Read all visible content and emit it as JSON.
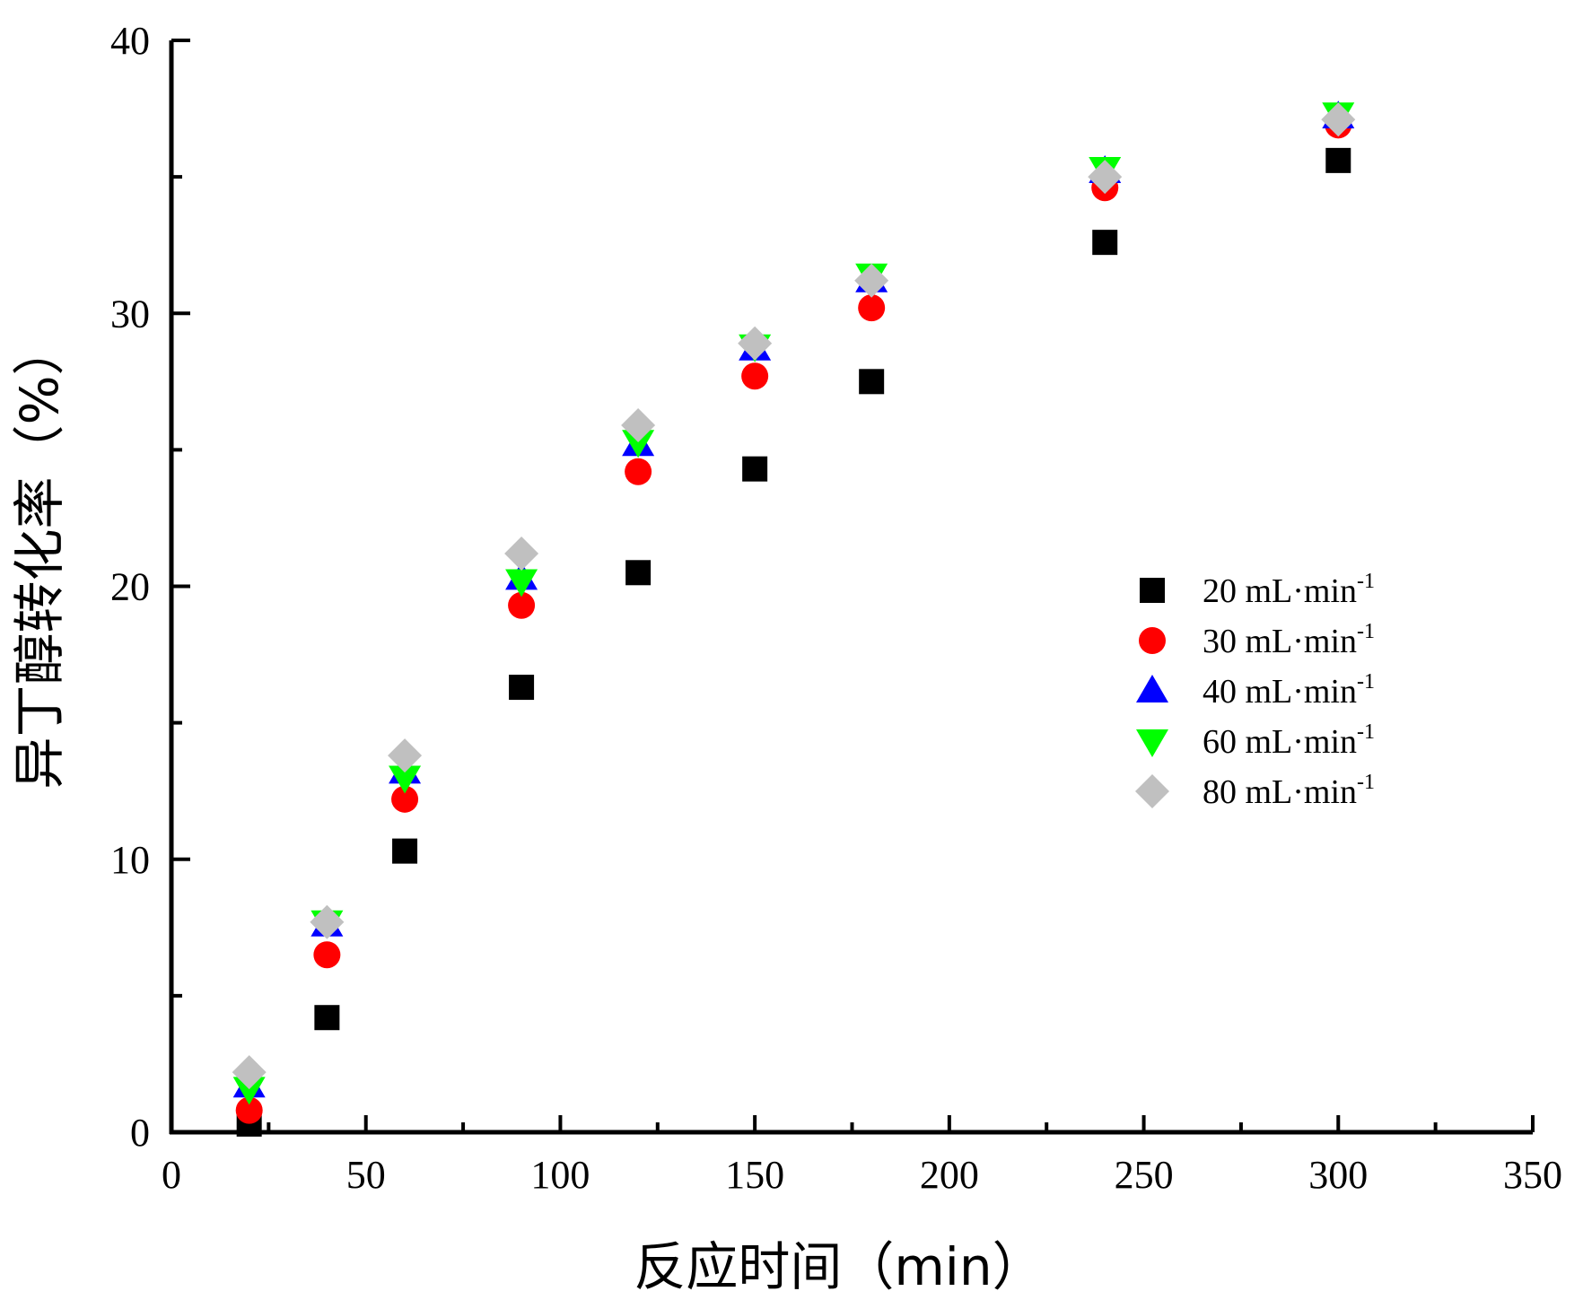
{
  "chart_data": {
    "type": "scatter",
    "xlabel": "反应时间（min）",
    "ylabel": "异丁醇转化率（%）",
    "xlim": [
      0,
      350
    ],
    "ylim": [
      0,
      40
    ],
    "xticks": [
      0,
      50,
      100,
      150,
      200,
      250,
      300,
      350
    ],
    "yticks": [
      0,
      10,
      20,
      30,
      40
    ],
    "grid": false,
    "legend_position": "right-center",
    "series": [
      {
        "name": "20 mL·min",
        "name_sup": "-1",
        "marker": "square",
        "color": "#000000",
        "x": [
          20,
          40,
          60,
          90,
          120,
          150,
          180,
          240,
          300
        ],
        "y": [
          0.3,
          4.2,
          10.3,
          16.3,
          20.5,
          24.3,
          27.5,
          32.6,
          35.6
        ]
      },
      {
        "name": "30 mL·min",
        "name_sup": "-1",
        "marker": "circle",
        "color": "#ff0000",
        "x": [
          20,
          40,
          60,
          90,
          120,
          150,
          180,
          240,
          300
        ],
        "y": [
          0.8,
          6.5,
          12.2,
          19.3,
          24.2,
          27.7,
          30.2,
          34.6,
          36.9
        ]
      },
      {
        "name": "40 mL·min",
        "name_sup": "-1",
        "marker": "triangle-up",
        "color": "#0000ff",
        "x": [
          20,
          40,
          60,
          90,
          120,
          150,
          180,
          240,
          300
        ],
        "y": [
          1.7,
          7.6,
          13.2,
          20.3,
          25.2,
          28.7,
          31.2,
          35.2,
          37.2
        ]
      },
      {
        "name": "60 mL·min",
        "name_sup": "-1",
        "marker": "triangle-down",
        "color": "#00ff00",
        "x": [
          20,
          40,
          60,
          90,
          120,
          150,
          180,
          240,
          300
        ],
        "y": [
          1.6,
          7.7,
          13.0,
          20.2,
          25.3,
          28.8,
          31.4,
          35.3,
          37.3
        ]
      },
      {
        "name": "80 mL·min",
        "name_sup": "-1",
        "marker": "diamond",
        "color": "#c0c0c0",
        "x": [
          20,
          40,
          60,
          90,
          120,
          150,
          180,
          240,
          300
        ],
        "y": [
          2.2,
          7.7,
          13.8,
          21.2,
          25.9,
          28.9,
          31.2,
          35.0,
          37.1
        ]
      }
    ]
  }
}
